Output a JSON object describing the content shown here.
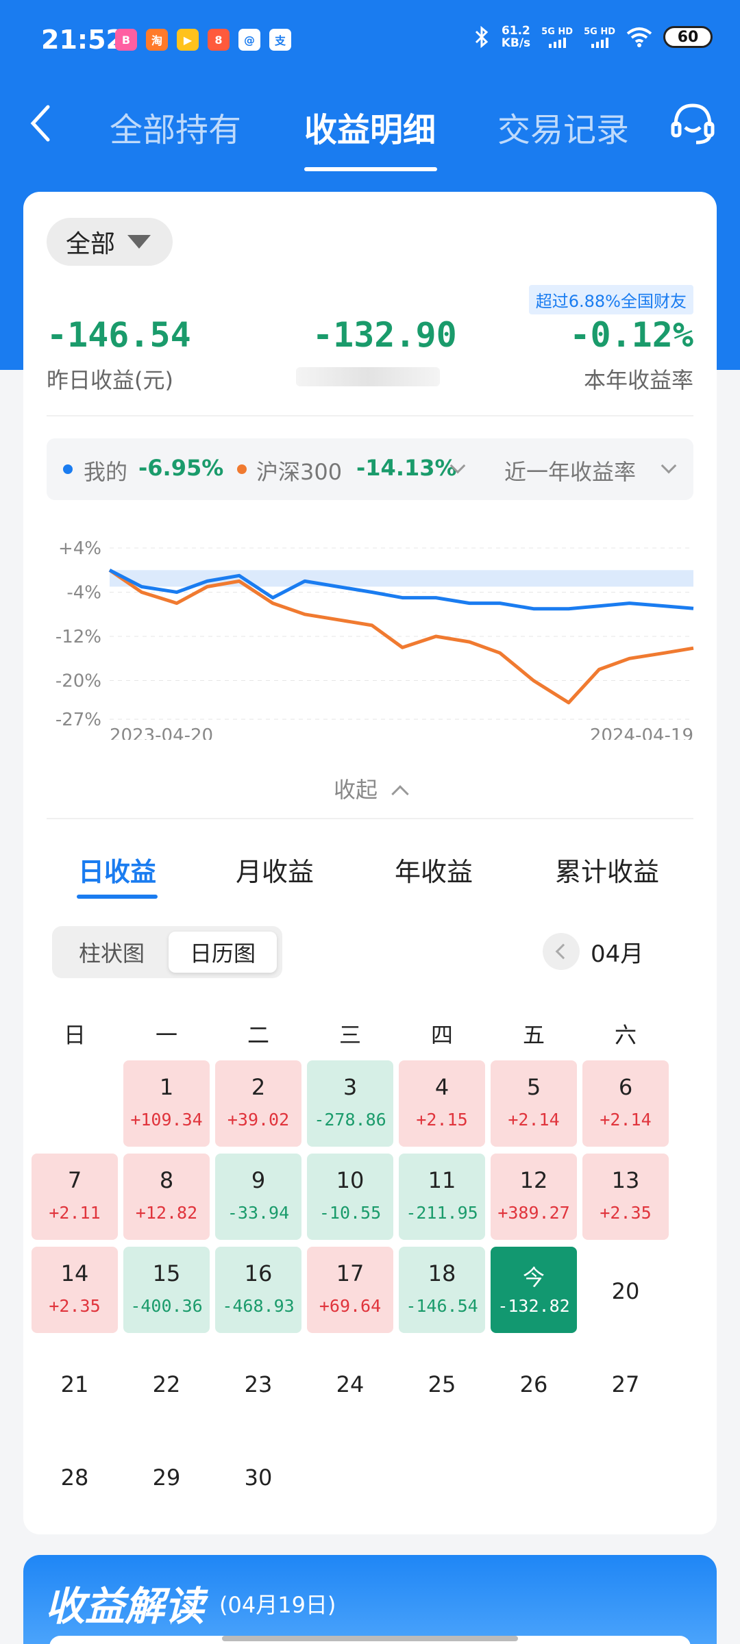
{
  "status_bar": {
    "time": "21:52",
    "app_icons": [
      "bilibili-icon",
      "shopping-icon",
      "video-icon",
      "app-icon",
      "qq-icon",
      "alipay-icon"
    ],
    "app_icon_glyphs": [
      "B",
      "淘",
      "▶",
      "8",
      "@",
      "支"
    ],
    "net_speed": "61.2",
    "net_unit": "KB/s",
    "sim1": "5G HD",
    "sim2": "5G HD",
    "battery": "60"
  },
  "nav": {
    "tabs": [
      "全部持有",
      "收益明细",
      "交易记录"
    ],
    "active_tab": "收益明细"
  },
  "filter": {
    "label": "全部"
  },
  "summary": {
    "rank_badge": "超过6.88%全国财友",
    "yesterday_value": "-146.54",
    "yesterday_label": "昨日收益(元)",
    "middle_value": "-132.90",
    "year_rate": "-0.12%",
    "year_rate_label": "本年收益率"
  },
  "legend": {
    "mine_label": "我的",
    "mine_value": "-6.95%",
    "index_label": "沪深300",
    "index_value": "-14.13%",
    "period": "近一年收益率"
  },
  "chart_data": {
    "type": "line",
    "x_start": "2023-04-20",
    "x_end": "2024-04-19",
    "y_ticks": [
      "+4%",
      "-4%",
      "-12%",
      "-20%",
      "-27%"
    ],
    "ylim": [
      -27,
      4
    ],
    "x_tick_labels": [
      "2023-04-20",
      "2024-04-19"
    ],
    "series": [
      {
        "name": "我的",
        "color": "#1a7cf0",
        "x": [
          "2023-04-20",
          "2023-05-10",
          "2023-06-01",
          "2023-06-20",
          "2023-07-10",
          "2023-07-31",
          "2023-08-20",
          "2023-09-10",
          "2023-10-01",
          "2023-10-20",
          "2023-11-10",
          "2023-12-01",
          "2023-12-20",
          "2024-01-10",
          "2024-02-01",
          "2024-02-20",
          "2024-03-10",
          "2024-04-01",
          "2024-04-19"
        ],
        "values": [
          0,
          -3,
          -4,
          -2,
          -1,
          -5,
          -2,
          -3,
          -4,
          -5,
          -5,
          -6,
          -6,
          -7,
          -7,
          -6.5,
          -6,
          -6.5,
          -6.95
        ]
      },
      {
        "name": "沪深300",
        "color": "#f07a30",
        "x": [
          "2023-04-20",
          "2023-05-10",
          "2023-06-01",
          "2023-06-20",
          "2023-07-10",
          "2023-07-31",
          "2023-08-20",
          "2023-09-10",
          "2023-10-01",
          "2023-10-20",
          "2023-11-10",
          "2023-12-01",
          "2023-12-20",
          "2024-01-10",
          "2024-02-01",
          "2024-02-20",
          "2024-03-10",
          "2024-04-01",
          "2024-04-19"
        ],
        "values": [
          0,
          -4,
          -6,
          -3,
          -2,
          -6,
          -8,
          -9,
          -10,
          -14,
          -12,
          -13,
          -15,
          -20,
          -24,
          -18,
          -16,
          -15,
          -14.13
        ]
      }
    ]
  },
  "collapse_label": "收起",
  "period_tabs": [
    "日收益",
    "月收益",
    "年收益",
    "累计收益"
  ],
  "active_period_tab": "日收益",
  "view_toggle": [
    "柱状图",
    "日历图"
  ],
  "active_view": "日历图",
  "month": "04月",
  "weekdays": [
    "日",
    "一",
    "二",
    "三",
    "四",
    "五",
    "六"
  ],
  "calendar": [
    {
      "day": "1",
      "value": "+109.34",
      "kind": "gain"
    },
    {
      "day": "2",
      "value": "+39.02",
      "kind": "gain"
    },
    {
      "day": "3",
      "value": "-278.86",
      "kind": "loss"
    },
    {
      "day": "4",
      "value": "+2.15",
      "kind": "gain"
    },
    {
      "day": "5",
      "value": "+2.14",
      "kind": "gain"
    },
    {
      "day": "6",
      "value": "+2.14",
      "kind": "gain"
    },
    {
      "day": "7",
      "value": "+2.11",
      "kind": "gain"
    },
    {
      "day": "8",
      "value": "+12.82",
      "kind": "gain"
    },
    {
      "day": "9",
      "value": "-33.94",
      "kind": "loss"
    },
    {
      "day": "10",
      "value": "-10.55",
      "kind": "loss"
    },
    {
      "day": "11",
      "value": "-211.95",
      "kind": "loss"
    },
    {
      "day": "12",
      "value": "+389.27",
      "kind": "gain"
    },
    {
      "day": "13",
      "value": "+2.35",
      "kind": "gain"
    },
    {
      "day": "14",
      "value": "+2.35",
      "kind": "gain"
    },
    {
      "day": "15",
      "value": "-400.36",
      "kind": "loss"
    },
    {
      "day": "16",
      "value": "-468.93",
      "kind": "loss"
    },
    {
      "day": "17",
      "value": "+69.64",
      "kind": "gain"
    },
    {
      "day": "18",
      "value": "-146.54",
      "kind": "loss"
    },
    {
      "day": "今",
      "value": "-132.82",
      "kind": "today"
    },
    {
      "day": "20",
      "value": "",
      "kind": "plain"
    },
    {
      "day": "21",
      "value": "",
      "kind": "plain"
    },
    {
      "day": "22",
      "value": "",
      "kind": "plain"
    },
    {
      "day": "23",
      "value": "",
      "kind": "plain"
    },
    {
      "day": "24",
      "value": "",
      "kind": "plain"
    },
    {
      "day": "25",
      "value": "",
      "kind": "plain"
    },
    {
      "day": "26",
      "value": "",
      "kind": "plain"
    },
    {
      "day": "27",
      "value": "",
      "kind": "plain"
    },
    {
      "day": "28",
      "value": "",
      "kind": "plain"
    },
    {
      "day": "29",
      "value": "",
      "kind": "plain"
    },
    {
      "day": "30",
      "value": "",
      "kind": "plain"
    }
  ],
  "interpretation": {
    "title": "收益解读",
    "date": "(04月19日)"
  }
}
